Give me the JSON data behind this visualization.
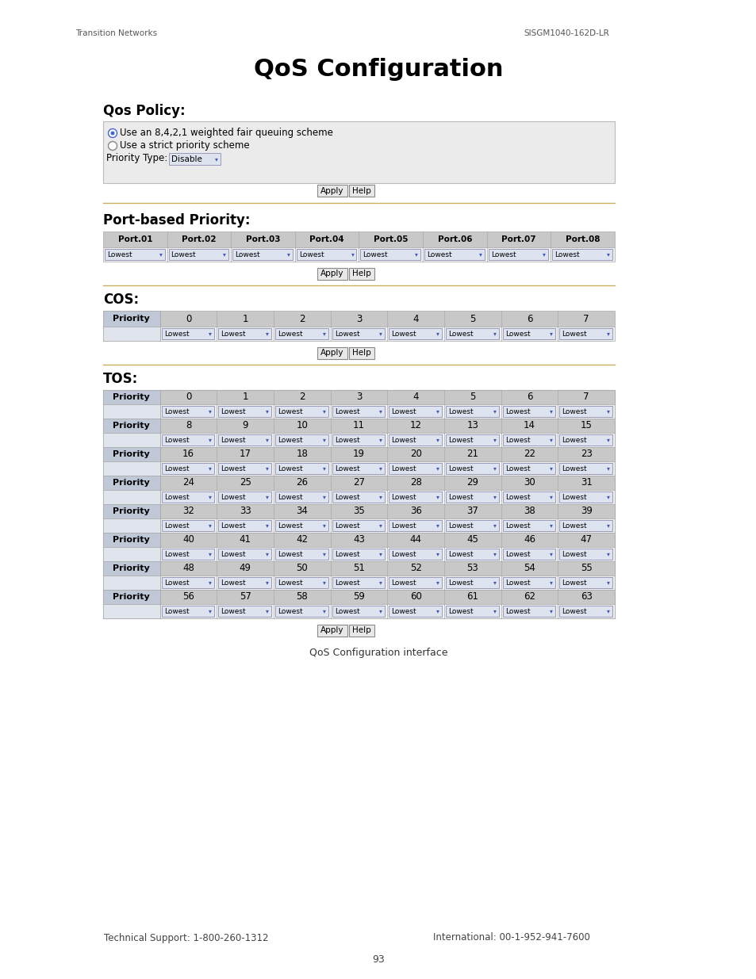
{
  "page_header_left": "Transition Networks",
  "page_header_right": "SISGM1040-162D-LR",
  "main_title": "QoS Configuration",
  "section1_title": "Qos Policy:",
  "qos_policy_line1": "Use an 8,4,2,1 weighted fair queuing scheme",
  "qos_policy_line2": "Use a strict priority scheme",
  "qos_policy_label": "Priority Type:",
  "qos_policy_dropdown": "Disable",
  "section2_title": "Port-based Priority:",
  "port_headers": [
    "Port.01",
    "Port.02",
    "Port.03",
    "Port.04",
    "Port.05",
    "Port.06",
    "Port.07",
    "Port.08"
  ],
  "section3_title": "COS:",
  "cos_nums": [
    "0",
    "1",
    "2",
    "3",
    "4",
    "5",
    "6",
    "7"
  ],
  "section4_title": "TOS:",
  "tos_rows": [
    {
      "label": "Priority",
      "nums": [
        "0",
        "1",
        "2",
        "3",
        "4",
        "5",
        "6",
        "7"
      ]
    },
    {
      "label": "Priority",
      "nums": [
        "8",
        "9",
        "10",
        "11",
        "12",
        "13",
        "14",
        "15"
      ]
    },
    {
      "label": "Priority",
      "nums": [
        "16",
        "17",
        "18",
        "19",
        "20",
        "21",
        "22",
        "23"
      ]
    },
    {
      "label": "Priority",
      "nums": [
        "24",
        "25",
        "26",
        "27",
        "28",
        "29",
        "30",
        "31"
      ]
    },
    {
      "label": "Priority",
      "nums": [
        "32",
        "33",
        "34",
        "35",
        "36",
        "37",
        "38",
        "39"
      ]
    },
    {
      "label": "Priority",
      "nums": [
        "40",
        "41",
        "42",
        "43",
        "44",
        "45",
        "46",
        "47"
      ]
    },
    {
      "label": "Priority",
      "nums": [
        "48",
        "49",
        "50",
        "51",
        "52",
        "53",
        "54",
        "55"
      ]
    },
    {
      "label": "Priority",
      "nums": [
        "56",
        "57",
        "58",
        "59",
        "60",
        "61",
        "62",
        "63"
      ]
    }
  ],
  "caption": "QoS Configuration interface",
  "footer_left": "Technical Support: 1-800-260-1312",
  "footer_right": "International: 00-1-952-941-7600",
  "page_number": "93",
  "bg_color": "#ffffff",
  "table_outer_bg": "#e4e4e4",
  "header_bg": "#c8c8c8",
  "row_bg": "#f0f0f0",
  "border_color": "#aaaaaa",
  "sep_color": "#c8b87a",
  "dropdown_bg": "#dde4f0",
  "dropdown_border": "#9999bb",
  "button_bg": "#e8e8e8",
  "button_border": "#888888",
  "priority_bg": "#c0c8d8",
  "text_dark": "#000000",
  "text_gray": "#555555"
}
